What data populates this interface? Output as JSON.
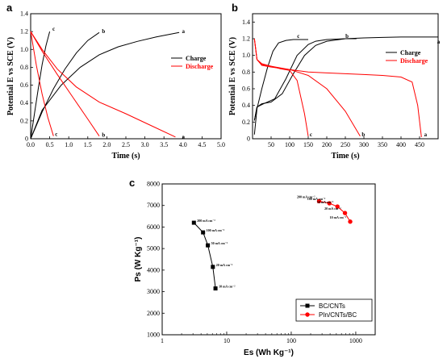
{
  "colors": {
    "black": "#000000",
    "red": "#ff0000",
    "frame": "#000000"
  },
  "chart_data": [
    {
      "panel": "a",
      "type": "line",
      "xlabel": "Time (s)",
      "ylabel": "Potential E vs SCE (V)",
      "xlim": [
        0,
        5.0
      ],
      "ylim": [
        0,
        1.4
      ],
      "xticks": [
        "0.0",
        "0.5",
        "1.0",
        "1.5",
        "2.0",
        "2.5",
        "3.0",
        "3.5",
        "4.0",
        "4.5",
        "5.0"
      ],
      "yticks": [
        "0",
        "0.2",
        "0.4",
        "0.6",
        "0.8",
        "1.0",
        "1.2",
        "1.4"
      ],
      "legend": {
        "position": "right-middle",
        "entries": [
          {
            "label": "Charge",
            "color": "#000000"
          },
          {
            "label": "Discharge",
            "color": "#ff0000"
          }
        ]
      },
      "series": [
        {
          "color": "#000000",
          "kind": "charge",
          "label": "a",
          "x": [
            0,
            0.3,
            0.8,
            1.3,
            1.8,
            2.3,
            2.8,
            3.3,
            3.9
          ],
          "y": [
            0,
            0.32,
            0.6,
            0.8,
            0.94,
            1.03,
            1.09,
            1.14,
            1.19
          ]
        },
        {
          "color": "#000000",
          "kind": "charge",
          "label": "b",
          "x": [
            0,
            0.3,
            0.6,
            0.9,
            1.2,
            1.5,
            1.8
          ],
          "y": [
            0,
            0.3,
            0.56,
            0.78,
            0.96,
            1.1,
            1.19
          ]
        },
        {
          "color": "#000000",
          "kind": "charge",
          "label": "c",
          "x": [
            0,
            0.1,
            0.2,
            0.3,
            0.4,
            0.5
          ],
          "y": [
            0,
            0.28,
            0.56,
            0.83,
            1.04,
            1.2
          ]
        },
        {
          "color": "#ff0000",
          "kind": "discharge",
          "label": "a",
          "x": [
            0,
            0.3,
            0.7,
            1.2,
            1.8,
            2.5,
            3.2,
            3.8
          ],
          "y": [
            1.2,
            1.0,
            0.78,
            0.58,
            0.41,
            0.28,
            0.14,
            0.02
          ]
        },
        {
          "color": "#ff0000",
          "kind": "discharge",
          "label": "b",
          "x": [
            0,
            0.3,
            0.7,
            1.1,
            1.5,
            1.8
          ],
          "y": [
            1.2,
            0.98,
            0.72,
            0.47,
            0.22,
            0.03
          ]
        },
        {
          "color": "#ff0000",
          "kind": "discharge",
          "label": "c",
          "x": [
            0,
            0.15,
            0.3,
            0.45,
            0.6
          ],
          "y": [
            1.2,
            0.82,
            0.5,
            0.24,
            0.03
          ]
        }
      ],
      "curve_labels": [
        {
          "text": "a",
          "x": 3.95,
          "y": 1.2
        },
        {
          "text": "b",
          "x": 1.85,
          "y": 1.2
        },
        {
          "text": "c",
          "x": 0.55,
          "y": 1.23
        },
        {
          "text": "a",
          "x": 3.95,
          "y": 0.02
        },
        {
          "text": "b",
          "x": 1.85,
          "y": 0.04
        },
        {
          "text": "c",
          "x": 0.62,
          "y": 0.05
        }
      ]
    },
    {
      "panel": "b",
      "type": "line",
      "xlabel": "Time (s)",
      "ylabel": "Potential E vs SCE (V)",
      "xlim": [
        0,
        500
      ],
      "ylim": [
        0,
        1.5
      ],
      "xticks": [
        "50",
        "100",
        "150",
        "200",
        "250",
        "300",
        "350",
        "400",
        "450"
      ],
      "yticks": [
        "0",
        "0.2",
        "0.4",
        "0.6",
        "0.8",
        "1.0",
        "1.2",
        "1.4"
      ],
      "legend": {
        "position": "right-middle",
        "entries": [
          {
            "label": "Charge",
            "color": "#000000"
          },
          {
            "label": "Discharge",
            "color": "#ff0000"
          }
        ]
      },
      "series": [
        {
          "color": "#000000",
          "kind": "charge",
          "label": "a",
          "x": [
            5,
            12,
            25,
            50,
            80,
            110,
            140,
            170,
            200,
            250,
            300,
            350,
            400,
            450,
            500
          ],
          "y": [
            0.22,
            0.38,
            0.42,
            0.44,
            0.54,
            0.78,
            1.0,
            1.12,
            1.17,
            1.2,
            1.21,
            1.215,
            1.22,
            1.22,
            1.22
          ]
        },
        {
          "color": "#000000",
          "kind": "charge",
          "label": "b",
          "x": [
            5,
            12,
            30,
            60,
            90,
            120,
            150,
            170,
            200,
            250,
            280
          ],
          "y": [
            0.22,
            0.38,
            0.42,
            0.48,
            0.72,
            1.0,
            1.13,
            1.17,
            1.19,
            1.2,
            1.2
          ]
        },
        {
          "color": "#000000",
          "kind": "charge",
          "label": "c",
          "x": [
            5,
            12,
            25,
            40,
            55,
            70,
            90,
            110,
            150
          ],
          "y": [
            0.05,
            0.36,
            0.6,
            0.85,
            1.05,
            1.15,
            1.18,
            1.19,
            1.19
          ]
        },
        {
          "color": "#ff0000",
          "kind": "discharge",
          "label": "a",
          "x": [
            5,
            12,
            25,
            50,
            100,
            150,
            200,
            250,
            300,
            350,
            400,
            430,
            445,
            455
          ],
          "y": [
            1.2,
            0.95,
            0.88,
            0.86,
            0.83,
            0.8,
            0.79,
            0.78,
            0.77,
            0.76,
            0.74,
            0.68,
            0.4,
            0.02
          ]
        },
        {
          "color": "#ff0000",
          "kind": "discharge",
          "label": "b",
          "x": [
            5,
            12,
            25,
            50,
            100,
            150,
            200,
            250,
            290
          ],
          "y": [
            1.2,
            0.95,
            0.89,
            0.87,
            0.83,
            0.76,
            0.6,
            0.33,
            0.03
          ]
        },
        {
          "color": "#ff0000",
          "kind": "discharge",
          "label": "c",
          "x": [
            5,
            12,
            25,
            50,
            75,
            100,
            120,
            140,
            150
          ],
          "y": [
            1.2,
            0.95,
            0.9,
            0.87,
            0.84,
            0.82,
            0.7,
            0.3,
            0.03
          ]
        }
      ],
      "curve_labels": [
        {
          "text": "c",
          "x": 118,
          "y": 1.23
        },
        {
          "text": "b",
          "x": 248,
          "y": 1.23
        },
        {
          "text": "a",
          "x": 495,
          "y": 1.16
        },
        {
          "text": "c",
          "x": 152,
          "y": 0.05
        },
        {
          "text": "b",
          "x": 292,
          "y": 0.05
        },
        {
          "text": "a",
          "x": 460,
          "y": 0.05
        }
      ]
    },
    {
      "panel": "c",
      "type": "scatter",
      "xlabel": "Es (Wh Kg⁻¹)",
      "ylabel": "Ps (W Kg⁻¹)",
      "xscale": "log",
      "xlim": [
        1,
        2000
      ],
      "ylim": [
        1000,
        8000
      ],
      "xticks": [
        {
          "v": 1,
          "t": "1"
        },
        {
          "v": 10,
          "t": "10"
        },
        {
          "v": 100,
          "t": "100"
        },
        {
          "v": 1000,
          "t": "1000"
        }
      ],
      "yticks": [
        "1000",
        "2000",
        "3000",
        "4000",
        "5000",
        "6000",
        "7000",
        "8000"
      ],
      "legend": {
        "position": "bottom-right",
        "entries": [
          {
            "label": "BC/CNTs",
            "color": "#000000",
            "marker": "square"
          },
          {
            "label": "PIn/CNTs/BC",
            "color": "#ff0000",
            "marker": "circle"
          }
        ]
      },
      "series": [
        {
          "name": "BC/CNTs",
          "color": "#000000",
          "marker": "square",
          "x": [
            3.1,
            4.3,
            5.1,
            6.1,
            6.7
          ],
          "y": [
            6200,
            5750,
            5150,
            4150,
            3150
          ],
          "labels": [
            "200 mA cm⁻²",
            "100 mA cm⁻²",
            "50 mA cm⁻²",
            "20 mA cm⁻²",
            "10 mA cm⁻²"
          ]
        },
        {
          "name": "PIn/CNTs/BC",
          "color": "#ff0000",
          "marker": "circle",
          "x": [
            270,
            390,
            520,
            680,
            820
          ],
          "y": [
            7200,
            7100,
            6950,
            6650,
            6250
          ],
          "labels": [
            "200 mA cm⁻²",
            "100 mA cm⁻²",
            "50 mA cm⁻²",
            "20 mA cm⁻²",
            "10 mA cm⁻²"
          ]
        }
      ]
    }
  ]
}
